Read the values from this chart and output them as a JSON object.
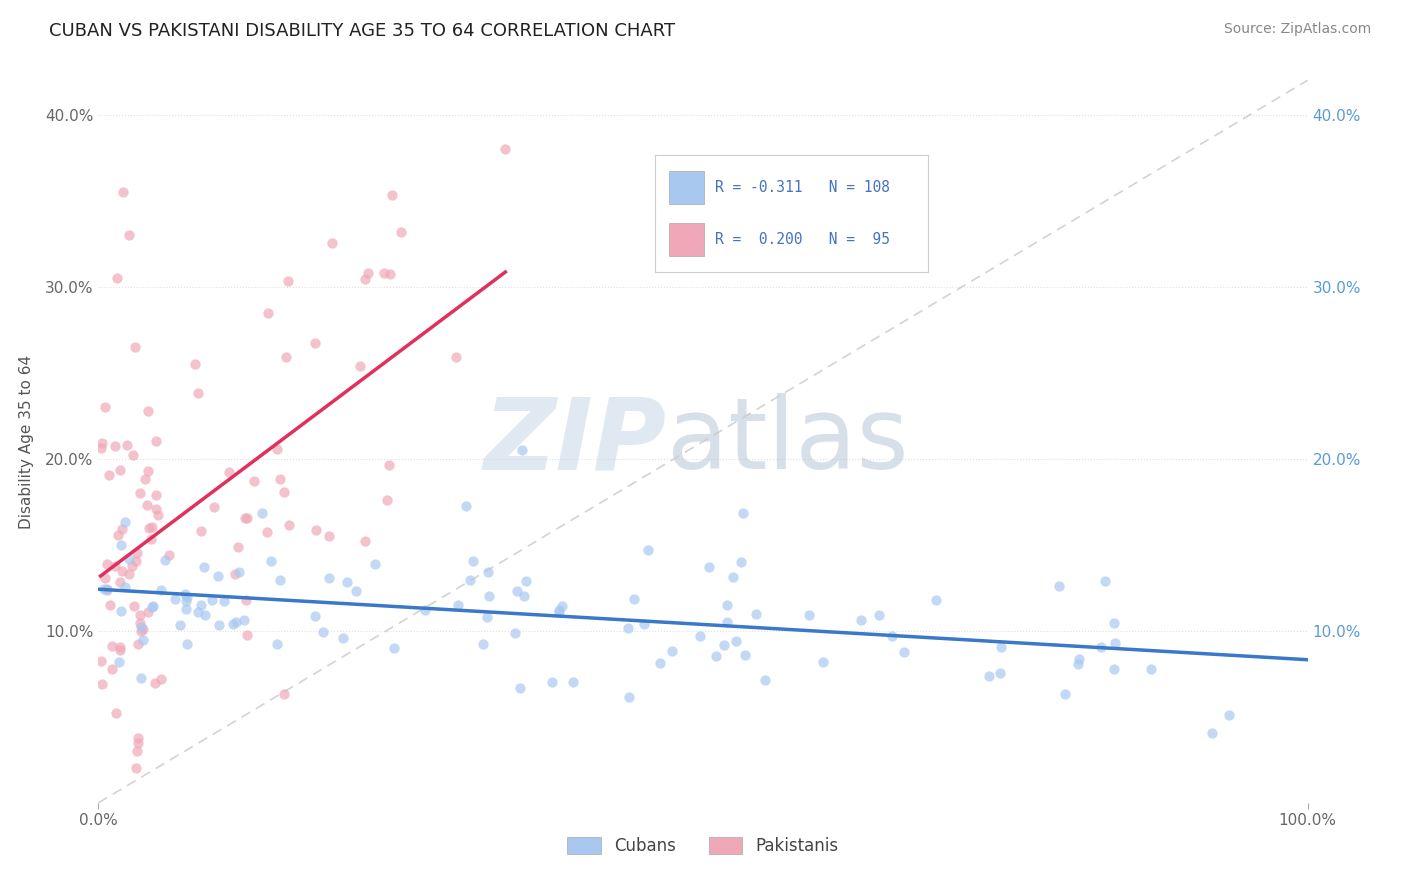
{
  "title": "CUBAN VS PAKISTANI DISABILITY AGE 35 TO 64 CORRELATION CHART",
  "source": "Source: ZipAtlas.com",
  "ylabel": "Disability Age 35 to 64",
  "xlim": [
    0.0,
    1.0
  ],
  "ylim": [
    0.0,
    0.42
  ],
  "cubans_R": -0.311,
  "cubans_N": 108,
  "pakistanis_R": 0.2,
  "pakistanis_N": 95,
  "scatter_color_cubans": "#a8c8f0",
  "scatter_color_pakistanis": "#f0a8b8",
  "trend_color_cubans": "#3a78c9",
  "trend_color_pakistanis": "#e03060",
  "diagonal_color": "#c8c8c8",
  "watermark_zip": "ZIP",
  "watermark_atlas": "atlas",
  "background_color": "#ffffff",
  "legend_text_color": "#4472c4",
  "y_ticks": [
    0.1,
    0.2,
    0.3,
    0.4
  ],
  "y_tick_labels": [
    "10.0%",
    "20.0%",
    "30.0%",
    "40.0%"
  ],
  "x_ticks": [
    0.0,
    1.0
  ],
  "x_tick_labels": [
    "0.0%",
    "100.0%"
  ]
}
